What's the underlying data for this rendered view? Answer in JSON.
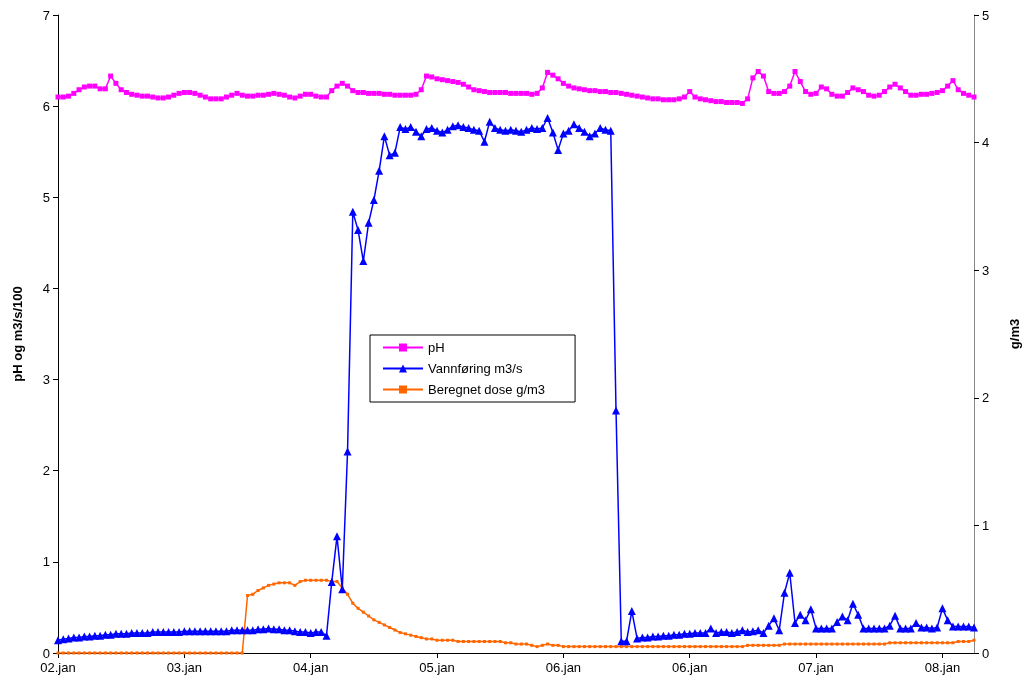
{
  "chart_data": {
    "type": "line",
    "ylabel": "pH og m3/s/100",
    "y2label": "g/m3",
    "legend": "center",
    "grid": false,
    "categories": [
      "02.jan",
      null,
      null,
      null,
      null,
      null,
      null,
      null,
      null,
      null,
      null,
      null,
      null,
      null,
      null,
      null,
      null,
      null,
      null,
      null,
      null,
      null,
      null,
      null,
      "03.jan",
      null,
      null,
      null,
      null,
      null,
      null,
      null,
      null,
      null,
      null,
      null,
      null,
      null,
      null,
      null,
      null,
      null,
      null,
      null,
      null,
      null,
      null,
      null,
      "04.jan",
      null,
      null,
      null,
      null,
      null,
      null,
      null,
      null,
      null,
      null,
      null,
      null,
      null,
      null,
      null,
      null,
      null,
      null,
      null,
      null,
      null,
      null,
      null,
      "05.jan",
      null,
      null,
      null,
      null,
      null,
      null,
      null,
      null,
      null,
      null,
      null,
      null,
      null,
      null,
      null,
      null,
      null,
      null,
      null,
      null,
      null,
      null,
      null,
      "06.jan",
      null,
      null,
      null,
      null,
      null,
      null,
      null,
      null,
      null,
      null,
      null,
      null,
      null,
      null,
      null,
      null,
      null,
      null,
      null,
      null,
      null,
      null,
      null,
      "06.jan",
      null,
      null,
      null,
      null,
      null,
      null,
      null,
      null,
      null,
      null,
      null,
      null,
      null,
      null,
      null,
      null,
      null,
      null,
      null,
      null,
      null,
      null,
      null,
      "07.jan",
      null,
      null,
      null,
      null,
      null,
      null,
      null,
      null,
      null,
      null,
      null,
      null,
      null,
      null,
      null,
      null,
      null,
      null,
      null,
      null,
      null,
      null,
      null,
      "08.jan",
      null,
      null,
      null,
      null,
      null,
      null
    ],
    "ylim": [
      0,
      7
    ],
    "yticks": [
      0,
      1,
      2,
      3,
      4,
      5,
      6,
      7
    ],
    "y2lim": [
      0,
      5
    ],
    "y2ticks": [
      0,
      1,
      2,
      3,
      4,
      5
    ],
    "series": [
      {
        "name": "pH",
        "color": "#ff00ff",
        "marker": "square",
        "values": [
          6.1,
          6.1,
          6.11,
          6.14,
          6.18,
          6.21,
          6.22,
          6.22,
          6.19,
          6.19,
          6.33,
          6.25,
          6.18,
          6.15,
          6.13,
          6.12,
          6.11,
          6.11,
          6.1,
          6.09,
          6.09,
          6.1,
          6.12,
          6.14,
          6.15,
          6.15,
          6.14,
          6.12,
          6.1,
          6.08,
          6.08,
          6.08,
          6.1,
          6.12,
          6.14,
          6.12,
          6.11,
          6.11,
          6.12,
          6.12,
          6.13,
          6.14,
          6.13,
          6.12,
          6.1,
          6.09,
          6.11,
          6.13,
          6.13,
          6.11,
          6.1,
          6.1,
          6.17,
          6.22,
          6.25,
          6.22,
          6.17,
          6.15,
          6.15,
          6.14,
          6.14,
          6.14,
          6.13,
          6.13,
          6.12,
          6.12,
          6.12,
          6.12,
          6.13,
          6.18,
          6.33,
          6.32,
          6.3,
          6.29,
          6.28,
          6.27,
          6.26,
          6.24,
          6.21,
          6.18,
          6.17,
          6.16,
          6.15,
          6.15,
          6.15,
          6.15,
          6.14,
          6.14,
          6.14,
          6.14,
          6.13,
          6.14,
          6.2,
          6.37,
          6.34,
          6.3,
          6.25,
          6.22,
          6.2,
          6.19,
          6.18,
          6.17,
          6.17,
          6.16,
          6.16,
          6.15,
          6.15,
          6.14,
          6.13,
          6.12,
          6.11,
          6.1,
          6.09,
          6.08,
          6.08,
          6.07,
          6.07,
          6.07,
          6.08,
          6.1,
          6.16,
          6.1,
          6.08,
          6.07,
          6.06,
          6.05,
          6.05,
          6.04,
          6.04,
          6.04,
          6.03,
          6.08,
          6.31,
          6.38,
          6.33,
          6.16,
          6.14,
          6.14,
          6.16,
          6.22,
          6.38,
          6.27,
          6.16,
          6.13,
          6.14,
          6.21,
          6.19,
          6.13,
          6.11,
          6.11,
          6.15,
          6.2,
          6.18,
          6.16,
          6.12,
          6.11,
          6.12,
          6.16,
          6.21,
          6.24,
          6.2,
          6.16,
          6.12,
          6.12,
          6.13,
          6.13,
          6.14,
          6.15,
          6.17,
          6.22,
          6.28,
          6.18,
          6.14,
          6.12,
          6.1
        ]
      },
      {
        "name": "Vannføring m3/s",
        "color": "#0000ff",
        "marker": "triangle",
        "values": [
          0.14,
          0.15,
          0.16,
          0.17,
          0.17,
          0.18,
          0.18,
          0.19,
          0.19,
          0.2,
          0.2,
          0.21,
          0.21,
          0.21,
          0.22,
          0.22,
          0.22,
          0.22,
          0.23,
          0.23,
          0.23,
          0.23,
          0.23,
          0.23,
          0.24,
          0.24,
          0.24,
          0.24,
          0.24,
          0.24,
          0.24,
          0.24,
          0.24,
          0.25,
          0.25,
          0.25,
          0.25,
          0.25,
          0.26,
          0.26,
          0.27,
          0.26,
          0.26,
          0.25,
          0.25,
          0.24,
          0.23,
          0.23,
          0.22,
          0.23,
          0.23,
          0.19,
          0.78,
          1.28,
          0.7,
          2.21,
          4.84,
          4.64,
          4.3,
          4.72,
          4.97,
          5.29,
          5.67,
          5.46,
          5.49,
          5.77,
          5.75,
          5.77,
          5.72,
          5.67,
          5.75,
          5.76,
          5.73,
          5.71,
          5.74,
          5.78,
          5.79,
          5.77,
          5.76,
          5.74,
          5.73,
          5.61,
          5.83,
          5.76,
          5.74,
          5.73,
          5.74,
          5.73,
          5.72,
          5.74,
          5.76,
          5.75,
          5.76,
          5.87,
          5.71,
          5.52,
          5.7,
          5.73,
          5.8,
          5.76,
          5.72,
          5.67,
          5.7,
          5.76,
          5.74,
          5.73,
          2.66,
          0.13,
          0.13,
          0.46,
          0.16,
          0.17,
          0.17,
          0.18,
          0.18,
          0.19,
          0.19,
          0.2,
          0.2,
          0.21,
          0.21,
          0.22,
          0.22,
          0.22,
          0.27,
          0.22,
          0.23,
          0.23,
          0.22,
          0.23,
          0.25,
          0.23,
          0.24,
          0.25,
          0.22,
          0.3,
          0.38,
          0.25,
          0.66,
          0.88,
          0.33,
          0.42,
          0.36,
          0.48,
          0.27,
          0.27,
          0.27,
          0.27,
          0.34,
          0.4,
          0.36,
          0.54,
          0.42,
          0.27,
          0.27,
          0.27,
          0.27,
          0.27,
          0.3,
          0.41,
          0.27,
          0.27,
          0.27,
          0.33,
          0.28,
          0.28,
          0.27,
          0.28,
          0.49,
          0.36,
          0.29,
          0.29,
          0.29,
          0.29,
          0.28
        ]
      },
      {
        "name": "Beregnet dose g/m3",
        "color": "#ff6600",
        "marker": "square",
        "axis": "y2",
        "values": [
          0,
          0,
          0,
          0,
          0,
          0,
          0,
          0,
          0,
          0,
          0,
          0,
          0,
          0,
          0,
          0,
          0,
          0,
          0,
          0,
          0,
          0,
          0,
          0,
          0,
          0,
          0,
          0,
          0,
          0,
          0,
          0,
          0,
          0,
          0,
          0,
          0.45,
          0.46,
          0.49,
          0.51,
          0.53,
          0.54,
          0.55,
          0.55,
          0.55,
          0.53,
          0.56,
          0.57,
          0.57,
          0.57,
          0.57,
          0.57,
          0.56,
          0.56,
          0.51,
          0.46,
          0.39,
          0.35,
          0.32,
          0.29,
          0.26,
          0.24,
          0.22,
          0.2,
          0.18,
          0.16,
          0.15,
          0.14,
          0.13,
          0.12,
          0.11,
          0.11,
          0.1,
          0.1,
          0.1,
          0.1,
          0.09,
          0.09,
          0.09,
          0.09,
          0.09,
          0.09,
          0.09,
          0.09,
          0.09,
          0.08,
          0.08,
          0.07,
          0.07,
          0.07,
          0.06,
          0.05,
          0.06,
          0.07,
          0.06,
          0.06,
          0.05,
          0.05,
          0.05,
          0.05,
          0.05,
          0.05,
          0.05,
          0.05,
          0.05,
          0.05,
          0.05,
          0.05,
          0.05,
          0.05,
          0.05,
          0.05,
          0.05,
          0.05,
          0.05,
          0.05,
          0.05,
          0.05,
          0.05,
          0.05,
          0.05,
          0.05,
          0.05,
          0.05,
          0.05,
          0.05,
          0.05,
          0.05,
          0.05,
          0.05,
          0.05,
          0.06,
          0.06,
          0.06,
          0.06,
          0.06,
          0.06,
          0.06,
          0.07,
          0.07,
          0.07,
          0.07,
          0.07,
          0.07,
          0.07,
          0.07,
          0.07,
          0.07,
          0.07,
          0.07,
          0.07,
          0.07,
          0.07,
          0.07,
          0.07,
          0.07,
          0.07,
          0.07,
          0.08,
          0.08,
          0.08,
          0.08,
          0.08,
          0.08,
          0.08,
          0.08,
          0.08,
          0.08,
          0.08,
          0.08,
          0.08,
          0.09,
          0.09,
          0.09,
          0.1
        ]
      }
    ]
  }
}
